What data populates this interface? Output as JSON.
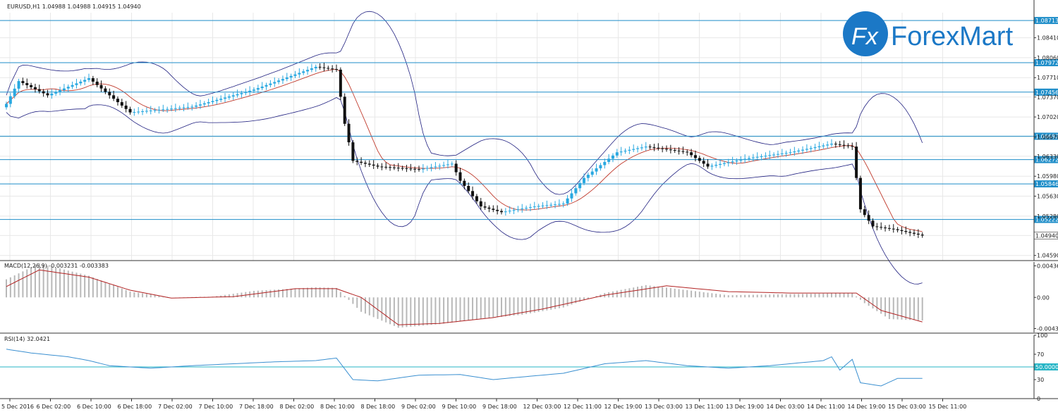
{
  "header": {
    "symbol_line": "EURUSD,H1  1.04988 1.04988 1.04915 1.04940",
    "logo": "ForexMart"
  },
  "colors": {
    "bull": "#29a8e0",
    "bear": "#111111",
    "level_line": "#1f8ec9",
    "band": "#202080",
    "ma": "#c0392b",
    "macd_hist": "#b8b8b8",
    "macd_signal": "#b22222",
    "rsi": "#3a8fd0",
    "rsi_level": "#26b5c6",
    "grid": "#e8e8e8"
  },
  "chart_data": [
    {
      "type": "candlestick",
      "title": "EURUSD,H1",
      "ohlc_last": {
        "open": 1.04988,
        "high": 1.04988,
        "low": 1.04915,
        "close": 1.0494
      },
      "ylim": [
        1.045,
        1.0885
      ],
      "price_ticks": [
        "1.08410",
        "1.08060",
        "1.07710",
        "1.07370",
        "1.07020",
        "1.06670",
        "1.06330",
        "1.05980",
        "1.05630",
        "1.05280",
        "1.04940",
        "1.04590"
      ],
      "horizontal_levels": [
        {
          "value": 1.08713,
          "label": "1.08713"
        },
        {
          "value": 1.07972,
          "label": "1.07972"
        },
        {
          "value": 1.07456,
          "label": "1.07456"
        },
        {
          "value": 1.06682,
          "label": "1.06682"
        },
        {
          "value": 1.06272,
          "label": "1.06272"
        },
        {
          "value": 1.05846,
          "label": "1.05846"
        },
        {
          "value": 1.05222,
          "label": "1.05222"
        }
      ],
      "current_price_label": "1.04940",
      "key_points": [
        {
          "bar": 0,
          "close": 1.0725
        },
        {
          "bar": 3,
          "close": 1.0765
        },
        {
          "bar": 10,
          "close": 1.074
        },
        {
          "bar": 20,
          "close": 1.077
        },
        {
          "bar": 30,
          "close": 1.071
        },
        {
          "bar": 45,
          "close": 1.072
        },
        {
          "bar": 60,
          "close": 1.075
        },
        {
          "bar": 75,
          "close": 1.079
        },
        {
          "bar": 80,
          "close": 1.0785
        },
        {
          "bar": 82,
          "close": 1.069
        },
        {
          "bar": 84,
          "close": 1.0625
        },
        {
          "bar": 90,
          "close": 1.0615
        },
        {
          "bar": 100,
          "close": 1.061
        },
        {
          "bar": 108,
          "close": 1.062
        },
        {
          "bar": 110,
          "close": 1.059
        },
        {
          "bar": 115,
          "close": 1.0545
        },
        {
          "bar": 120,
          "close": 1.0535
        },
        {
          "bar": 128,
          "close": 1.0545
        },
        {
          "bar": 135,
          "close": 1.055
        },
        {
          "bar": 140,
          "close": 1.0595
        },
        {
          "bar": 148,
          "close": 1.064
        },
        {
          "bar": 155,
          "close": 1.065
        },
        {
          "bar": 165,
          "close": 1.064
        },
        {
          "bar": 170,
          "close": 1.0615
        },
        {
          "bar": 180,
          "close": 1.063
        },
        {
          "bar": 190,
          "close": 1.064
        },
        {
          "bar": 200,
          "close": 1.0655
        },
        {
          "bar": 205,
          "close": 1.065
        },
        {
          "bar": 207,
          "close": 1.054
        },
        {
          "bar": 210,
          "close": 1.051
        },
        {
          "bar": 215,
          "close": 1.0505
        },
        {
          "bar": 222,
          "close": 1.0494
        }
      ],
      "indicators": [
        "Bollinger Bands",
        "Moving Average"
      ]
    },
    {
      "type": "bar",
      "title": "MACD(12,26,9) -0.003231 -0.003383",
      "ylim": [
        -0.00485,
        0.0049
      ],
      "ticks": [
        "0.004367",
        "0.00",
        "-0.004316"
      ],
      "macd_points": [
        {
          "bar": 0,
          "v": 0.0025
        },
        {
          "bar": 8,
          "v": 0.0047
        },
        {
          "bar": 20,
          "v": 0.003
        },
        {
          "bar": 30,
          "v": 0.0008
        },
        {
          "bar": 40,
          "v": 0.0
        },
        {
          "bar": 50,
          "v": 0.0001
        },
        {
          "bar": 60,
          "v": 0.0009
        },
        {
          "bar": 75,
          "v": 0.0014
        },
        {
          "bar": 80,
          "v": 0.0013
        },
        {
          "bar": 86,
          "v": -0.002
        },
        {
          "bar": 95,
          "v": -0.0042
        },
        {
          "bar": 105,
          "v": -0.0037
        },
        {
          "bar": 115,
          "v": -0.003
        },
        {
          "bar": 125,
          "v": -0.0024
        },
        {
          "bar": 135,
          "v": -0.0014
        },
        {
          "bar": 145,
          "v": 0.0006
        },
        {
          "bar": 155,
          "v": 0.0017
        },
        {
          "bar": 165,
          "v": 0.001
        },
        {
          "bar": 175,
          "v": 0.0003
        },
        {
          "bar": 185,
          "v": 0.0004
        },
        {
          "bar": 205,
          "v": 0.0006
        },
        {
          "bar": 208,
          "v": -0.0008
        },
        {
          "bar": 214,
          "v": -0.003
        },
        {
          "bar": 222,
          "v": -0.0032
        }
      ],
      "signal_points": [
        {
          "bar": 0,
          "v": 0.0015
        },
        {
          "bar": 8,
          "v": 0.0038
        },
        {
          "bar": 20,
          "v": 0.0028
        },
        {
          "bar": 30,
          "v": 0.001
        },
        {
          "bar": 40,
          "v": -0.0001
        },
        {
          "bar": 55,
          "v": 0.0001
        },
        {
          "bar": 70,
          "v": 0.0012
        },
        {
          "bar": 80,
          "v": 0.0012
        },
        {
          "bar": 86,
          "v": 0.0
        },
        {
          "bar": 95,
          "v": -0.0038
        },
        {
          "bar": 105,
          "v": -0.0036
        },
        {
          "bar": 118,
          "v": -0.0028
        },
        {
          "bar": 130,
          "v": -0.0016
        },
        {
          "bar": 145,
          "v": 0.0003
        },
        {
          "bar": 160,
          "v": 0.0016
        },
        {
          "bar": 175,
          "v": 0.0008
        },
        {
          "bar": 190,
          "v": 0.0006
        },
        {
          "bar": 206,
          "v": 0.0006
        },
        {
          "bar": 212,
          "v": -0.0018
        },
        {
          "bar": 222,
          "v": -0.0034
        }
      ]
    },
    {
      "type": "line",
      "title": "RSI(14) 32.0421",
      "ylim": [
        0,
        100
      ],
      "ticks": [
        "100",
        "70",
        "30",
        "0"
      ],
      "level_label": "50.0000",
      "points": [
        {
          "bar": 0,
          "v": 78
        },
        {
          "bar": 6,
          "v": 72
        },
        {
          "bar": 15,
          "v": 66
        },
        {
          "bar": 20,
          "v": 60
        },
        {
          "bar": 25,
          "v": 52
        },
        {
          "bar": 35,
          "v": 48
        },
        {
          "bar": 45,
          "v": 52
        },
        {
          "bar": 55,
          "v": 55
        },
        {
          "bar": 65,
          "v": 58
        },
        {
          "bar": 75,
          "v": 60
        },
        {
          "bar": 80,
          "v": 64
        },
        {
          "bar": 84,
          "v": 30
        },
        {
          "bar": 90,
          "v": 28
        },
        {
          "bar": 100,
          "v": 37
        },
        {
          "bar": 110,
          "v": 38
        },
        {
          "bar": 118,
          "v": 30
        },
        {
          "bar": 128,
          "v": 36
        },
        {
          "bar": 135,
          "v": 40
        },
        {
          "bar": 145,
          "v": 55
        },
        {
          "bar": 155,
          "v": 60
        },
        {
          "bar": 165,
          "v": 52
        },
        {
          "bar": 175,
          "v": 48
        },
        {
          "bar": 185,
          "v": 52
        },
        {
          "bar": 198,
          "v": 60
        },
        {
          "bar": 200,
          "v": 66
        },
        {
          "bar": 202,
          "v": 45
        },
        {
          "bar": 205,
          "v": 62
        },
        {
          "bar": 207,
          "v": 25
        },
        {
          "bar": 212,
          "v": 20
        },
        {
          "bar": 216,
          "v": 32
        },
        {
          "bar": 222,
          "v": 32
        }
      ]
    }
  ],
  "time_axis": [
    "5 Dec 2016",
    "6 Dec 02:00",
    "6 Dec 10:00",
    "6 Dec 18:00",
    "7 Dec 02:00",
    "7 Dec 10:00",
    "7 Dec 18:00",
    "8 Dec 02:00",
    "8 Dec 10:00",
    "8 Dec 18:00",
    "9 Dec 02:00",
    "9 Dec 10:00",
    "9 Dec 18:00",
    "12 Dec 03:00",
    "12 Dec 11:00",
    "12 Dec 19:00",
    "13 Dec 03:00",
    "13 Dec 11:00",
    "13 Dec 19:00",
    "14 Dec 03:00",
    "14 Dec 11:00",
    "14 Dec 19:00",
    "15 Dec 03:00",
    "15 Dec 11:00"
  ]
}
